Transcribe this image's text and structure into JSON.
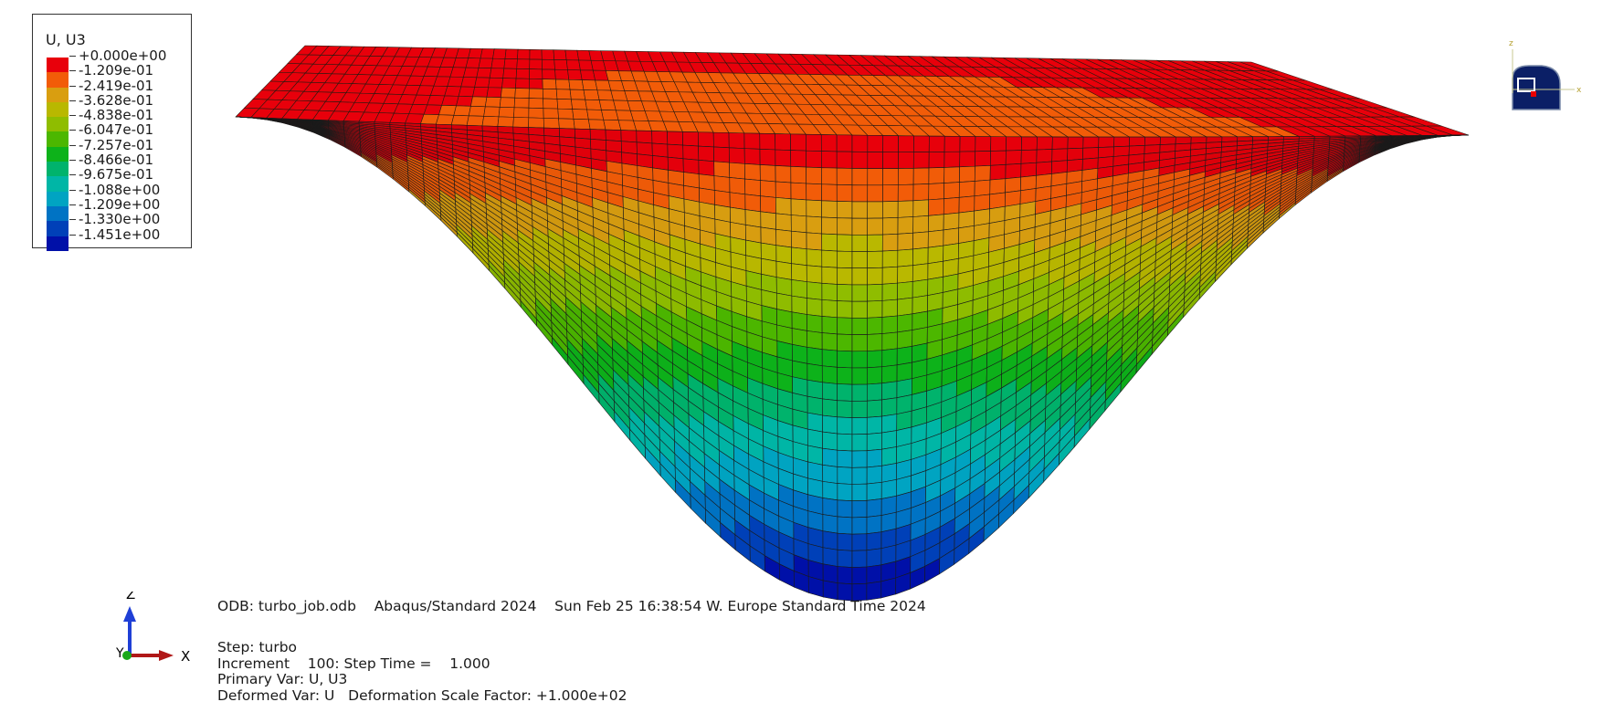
{
  "legend": {
    "title": "U, U3",
    "entries": [
      {
        "label": "+0.000e+00",
        "color": "#e8000b"
      },
      {
        "label": "-1.209e-01",
        "color": "#f25c08"
      },
      {
        "label": "-2.419e-01",
        "color": "#d99e10"
      },
      {
        "label": "-3.628e-01",
        "color": "#b9b800"
      },
      {
        "label": "-4.838e-01",
        "color": "#8fbd00"
      },
      {
        "label": "-6.047e-01",
        "color": "#4cb700"
      },
      {
        "label": "-7.257e-01",
        "color": "#0db21a"
      },
      {
        "label": "-8.466e-01",
        "color": "#00b36c"
      },
      {
        "label": "-9.675e-01",
        "color": "#00b6a6"
      },
      {
        "label": "-1.088e+00",
        "color": "#00a4c2"
      },
      {
        "label": "-1.209e+00",
        "color": "#0073c4"
      },
      {
        "label": "-1.330e+00",
        "color": "#0040b8"
      },
      {
        "label": "-1.451e+00",
        "color": "#0010a8"
      }
    ]
  },
  "info": {
    "odb_line": "ODB: turbo_job.odb    Abaqus/Standard 2024    Sun Feb 25 16:38:54 W. Europe Standard Time 2024",
    "step": "Step: turbo",
    "increment": "Increment    100: Step Time =    1.000",
    "primary_var": "Primary Var: U, U3",
    "deformed_var": "Deformed Var: U   Deformation Scale Factor: +1.000e+02"
  },
  "triad": {
    "z_label": "Z",
    "y_label": "Y",
    "x_label": "X",
    "z_color": "#1f3fd6",
    "x_color": "#b01818",
    "y_color": "#1aa81a"
  },
  "view_cube": {
    "z_label": "z",
    "x_label": "x",
    "face_color": "#0b1f66"
  }
}
